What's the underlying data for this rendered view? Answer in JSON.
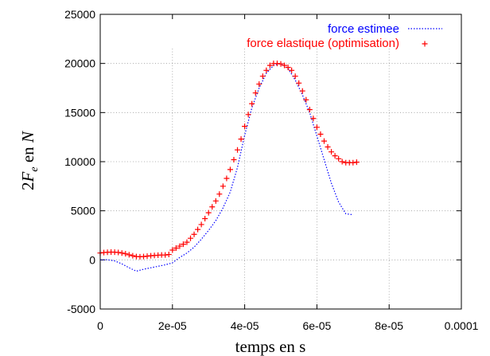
{
  "chart_data": {
    "type": "line",
    "xlabel": "temps en s",
    "ylabel": "2F_e en N",
    "xlim": [
      0,
      0.0001
    ],
    "ylim": [
      -5000,
      25000
    ],
    "x_ticks": [
      {
        "value": 0,
        "label": "0"
      },
      {
        "value": 2e-05,
        "label": "2e-05"
      },
      {
        "value": 4e-05,
        "label": "4e-05"
      },
      {
        "value": 6e-05,
        "label": "6e-05"
      },
      {
        "value": 8e-05,
        "label": "8e-05"
      },
      {
        "value": 0.0001,
        "label": "0.0001"
      }
    ],
    "y_ticks": [
      {
        "value": -5000,
        "label": "-5000"
      },
      {
        "value": 0,
        "label": "0"
      },
      {
        "value": 5000,
        "label": "5000"
      },
      {
        "value": 10000,
        "label": "10000"
      },
      {
        "value": 15000,
        "label": "15000"
      },
      {
        "value": 20000,
        "label": "20000"
      },
      {
        "value": 25000,
        "label": "25000"
      }
    ],
    "grid": true,
    "legend_position": "top-right",
    "series": [
      {
        "name": "force estimee",
        "style": "dotted-line",
        "color": "#0000ff",
        "points": [
          [
            0,
            0
          ],
          [
            2e-06,
            20
          ],
          [
            4e-06,
            -100
          ],
          [
            6e-06,
            -400
          ],
          [
            8e-06,
            -800
          ],
          [
            1e-05,
            -1150
          ],
          [
            1.2e-05,
            -950
          ],
          [
            1.4e-05,
            -800
          ],
          [
            1.6e-05,
            -650
          ],
          [
            1.8e-05,
            -500
          ],
          [
            2e-05,
            -300
          ],
          [
            2.2e-05,
            250
          ],
          [
            2.4e-05,
            700
          ],
          [
            2.6e-05,
            1300
          ],
          [
            2.8e-05,
            2100
          ],
          [
            3e-05,
            3000
          ],
          [
            3.2e-05,
            4000
          ],
          [
            3.4e-05,
            5300
          ],
          [
            3.6e-05,
            6900
          ],
          [
            3.8e-05,
            9400
          ],
          [
            4e-05,
            12700
          ],
          [
            4.2e-05,
            15500
          ],
          [
            4.4e-05,
            17500
          ],
          [
            4.6e-05,
            19000
          ],
          [
            4.8e-05,
            19800
          ],
          [
            5e-05,
            20000
          ],
          [
            5.2e-05,
            19500
          ],
          [
            5.4e-05,
            18300
          ],
          [
            5.6e-05,
            16800
          ],
          [
            5.8e-05,
            15000
          ],
          [
            6e-05,
            12600
          ],
          [
            6.2e-05,
            10200
          ],
          [
            6.4e-05,
            7800
          ],
          [
            6.6e-05,
            5900
          ],
          [
            6.8e-05,
            4700
          ],
          [
            7e-05,
            4600
          ]
        ]
      },
      {
        "name": "force elastique (optimisation)",
        "style": "plus-markers",
        "color": "#ff0000",
        "points": [
          [
            0,
            700
          ],
          [
            1e-06,
            750
          ],
          [
            2e-06,
            780
          ],
          [
            3e-06,
            800
          ],
          [
            4e-06,
            790
          ],
          [
            5e-06,
            760
          ],
          [
            6e-06,
            700
          ],
          [
            7e-06,
            620
          ],
          [
            8e-06,
            520
          ],
          [
            9e-06,
            420
          ],
          [
            1e-05,
            340
          ],
          [
            1.1e-05,
            320
          ],
          [
            1.2e-05,
            340
          ],
          [
            1.3e-05,
            380
          ],
          [
            1.4e-05,
            420
          ],
          [
            1.5e-05,
            450
          ],
          [
            1.6e-05,
            480
          ],
          [
            1.7e-05,
            500
          ],
          [
            1.8e-05,
            500
          ],
          [
            1.9e-05,
            550
          ],
          [
            2e-05,
            1000
          ],
          [
            2.1e-05,
            1200
          ],
          [
            2.2e-05,
            1400
          ],
          [
            2.3e-05,
            1600
          ],
          [
            2.4e-05,
            1800
          ],
          [
            2.5e-05,
            2200
          ],
          [
            2.6e-05,
            2600
          ],
          [
            2.7e-05,
            3100
          ],
          [
            2.8e-05,
            3600
          ],
          [
            2.9e-05,
            4200
          ],
          [
            3e-05,
            4800
          ],
          [
            3.1e-05,
            5400
          ],
          [
            3.2e-05,
            6000
          ],
          [
            3.3e-05,
            6700
          ],
          [
            3.4e-05,
            7500
          ],
          [
            3.5e-05,
            8300
          ],
          [
            3.6e-05,
            9200
          ],
          [
            3.7e-05,
            10200
          ],
          [
            3.8e-05,
            11200
          ],
          [
            3.9e-05,
            12300
          ],
          [
            4e-05,
            13600
          ],
          [
            4.1e-05,
            14800
          ],
          [
            4.2e-05,
            15900
          ],
          [
            4.3e-05,
            17000
          ],
          [
            4.4e-05,
            17900
          ],
          [
            4.5e-05,
            18700
          ],
          [
            4.6e-05,
            19300
          ],
          [
            4.7e-05,
            19800
          ],
          [
            4.8e-05,
            20000
          ],
          [
            4.9e-05,
            20000
          ],
          [
            5e-05,
            19950
          ],
          [
            5.1e-05,
            19800
          ],
          [
            5.2e-05,
            19600
          ],
          [
            5.3e-05,
            19300
          ],
          [
            5.4e-05,
            18700
          ],
          [
            5.5e-05,
            18000
          ],
          [
            5.6e-05,
            17200
          ],
          [
            5.7e-05,
            16300
          ],
          [
            5.8e-05,
            15300
          ],
          [
            5.9e-05,
            14400
          ],
          [
            6e-05,
            13500
          ],
          [
            6.1e-05,
            12800
          ],
          [
            6.2e-05,
            12100
          ],
          [
            6.3e-05,
            11500
          ],
          [
            6.4e-05,
            11000
          ],
          [
            6.5e-05,
            10600
          ],
          [
            6.6e-05,
            10300
          ],
          [
            6.7e-05,
            10000
          ],
          [
            6.8e-05,
            9900
          ],
          [
            6.9e-05,
            9900
          ],
          [
            7e-05,
            9900
          ],
          [
            7.1e-05,
            9950
          ]
        ]
      }
    ]
  }
}
